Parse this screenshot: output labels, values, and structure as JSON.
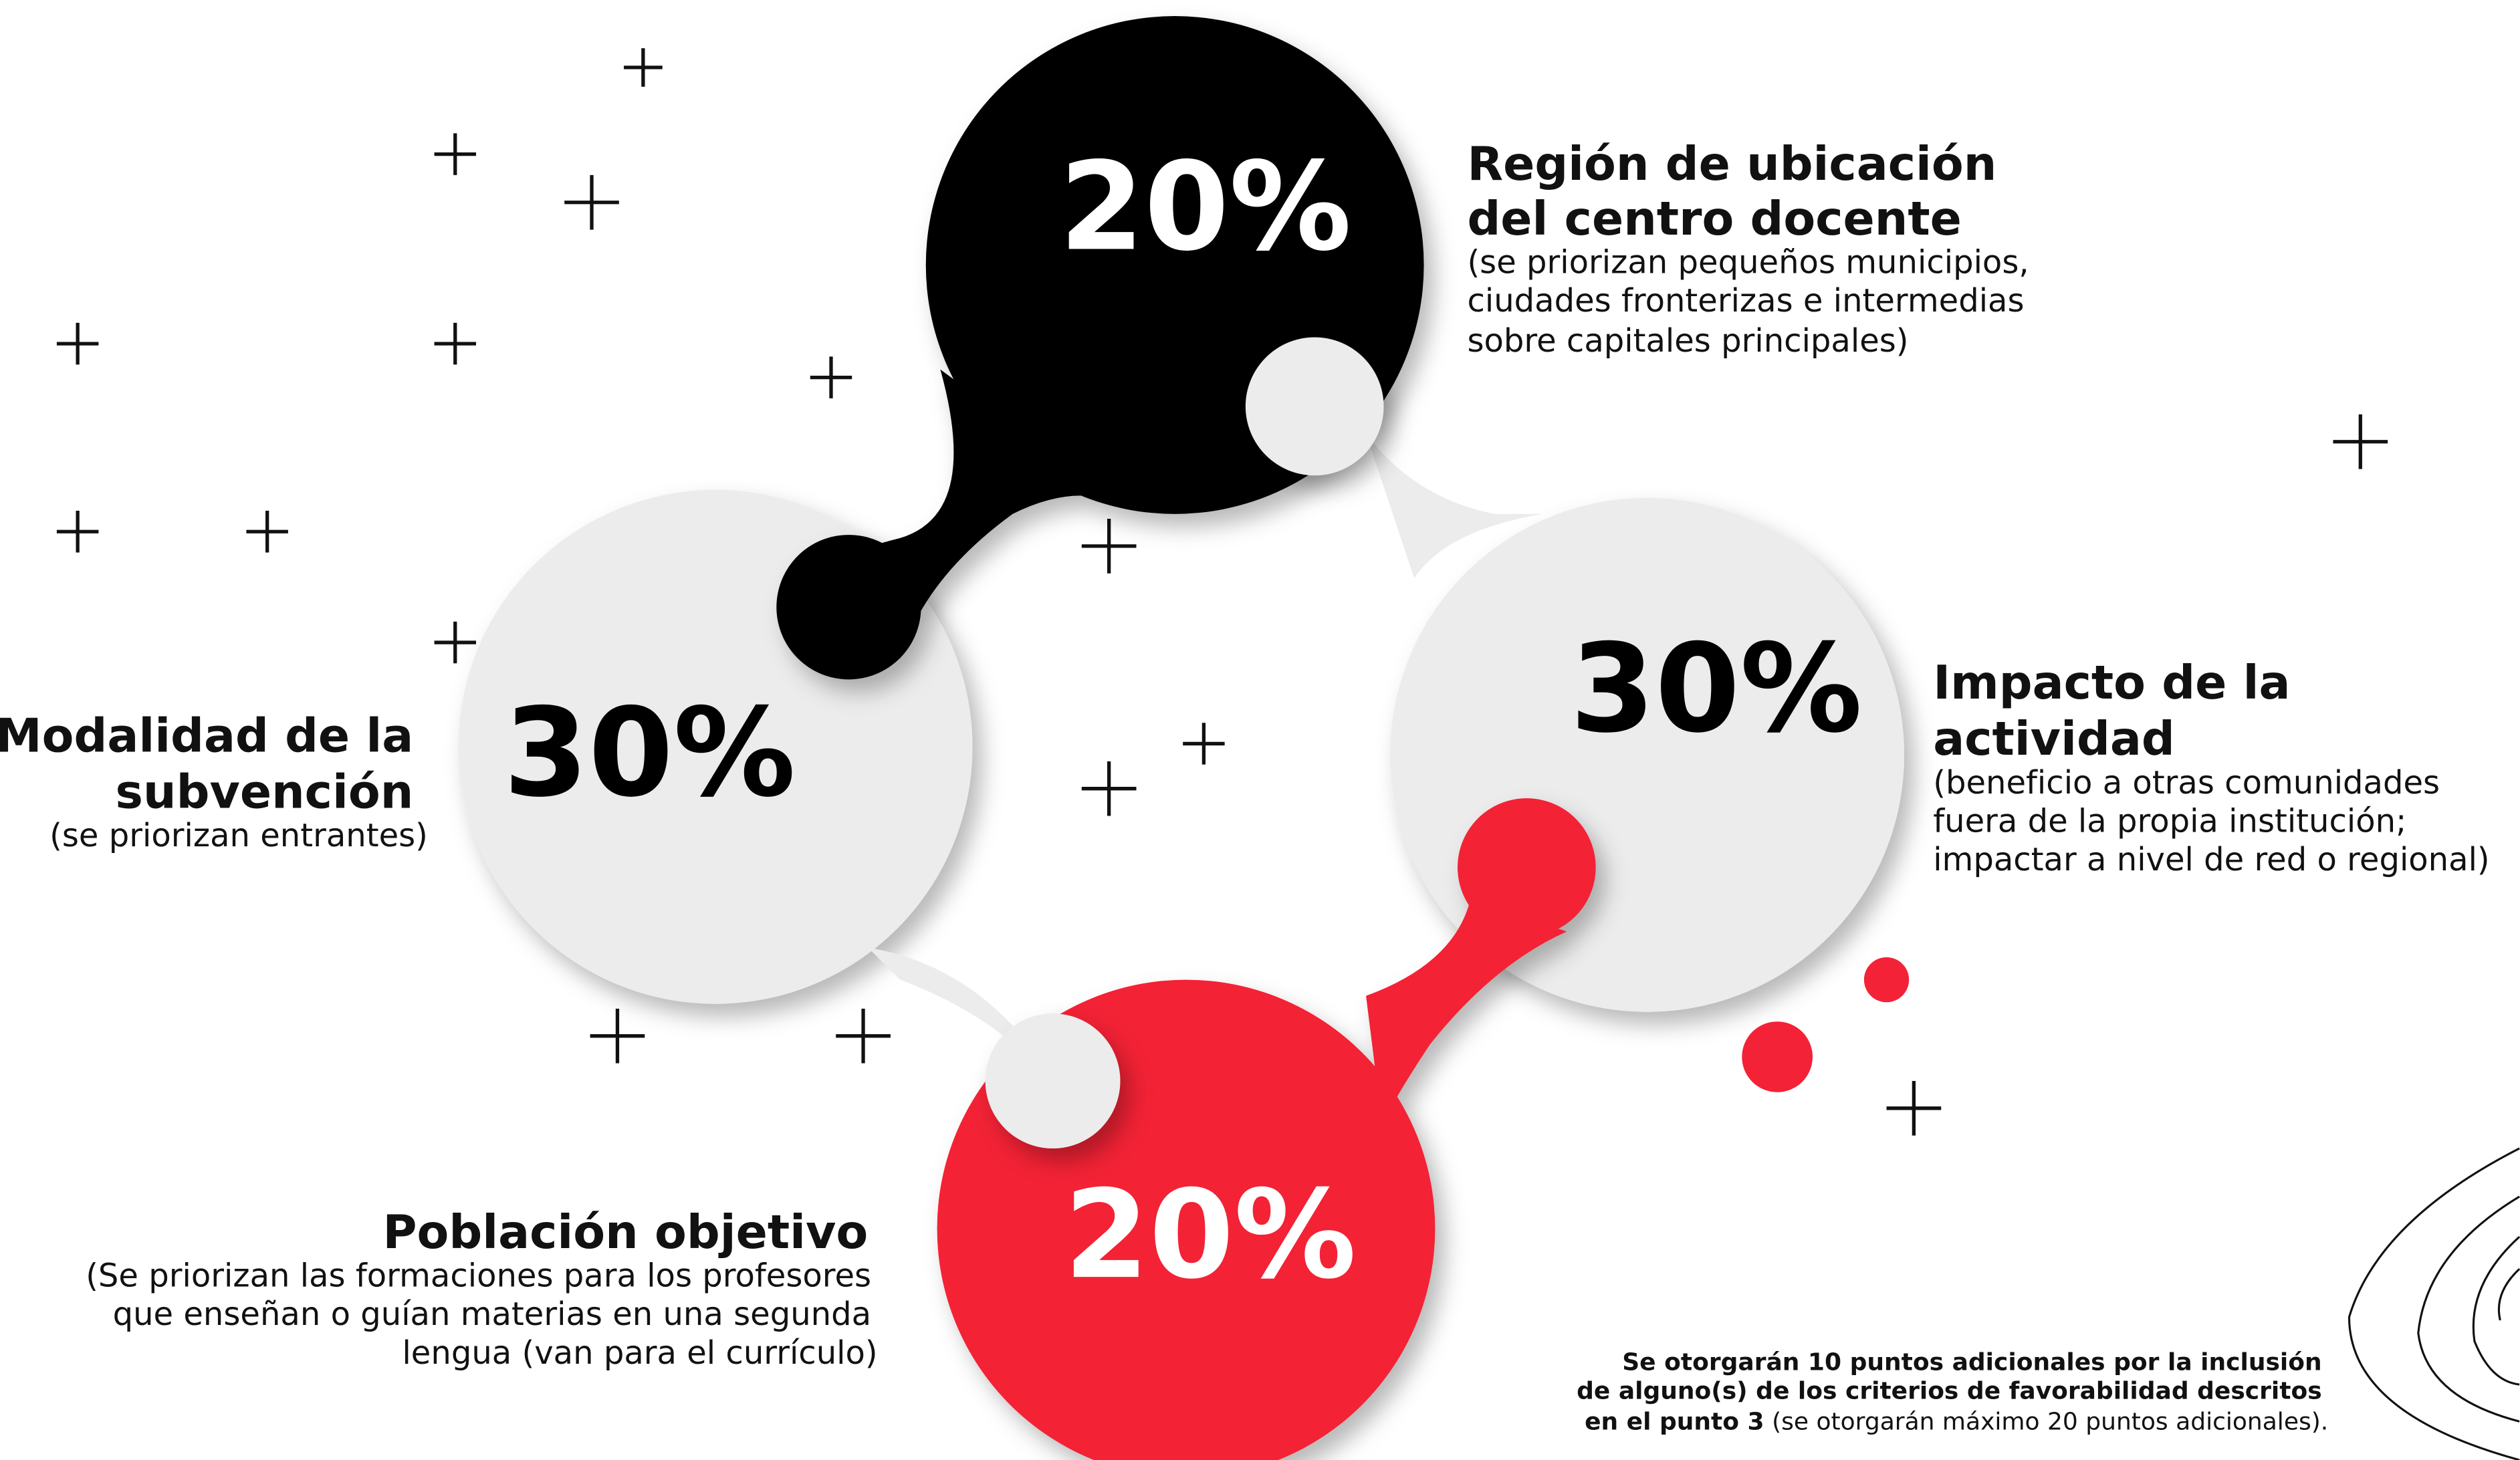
{
  "items": [
    {
      "percent": "20%",
      "title": [
        "Región de ubicación",
        "del centro docente"
      ],
      "description": [
        "(se priorizan pequeños municipios,",
        "ciudades fronterizas e intermedias",
        "sobre capitales principales)"
      ]
    },
    {
      "percent": "30%",
      "title": [
        "Modalidad de la",
        "subvención"
      ],
      "description": [
        "(se priorizan entrantes)"
      ]
    },
    {
      "percent": "30%",
      "title": [
        "Impacto de la",
        "actividad"
      ],
      "description": [
        "(beneficio a otras comunidades",
        "fuera de la propia institución;",
        "impactar a nivel de red o regional)"
      ]
    },
    {
      "percent": "20%",
      "title": [
        "Población objetivo"
      ],
      "description": [
        "(Se priorizan las formaciones para los profesores",
        "que enseñan o guían materias en una segunda",
        "lengua (van para el currículo)"
      ]
    }
  ],
  "note": {
    "lines": [
      "Se otorgarán 10 puntos adicionales por la inclusión",
      "de alguno(s) de los criterios de favorabilidad descritos",
      "en el punto 3"
    ],
    "tail": "(se otorgarán máximo 20 puntos adicionales)."
  }
}
